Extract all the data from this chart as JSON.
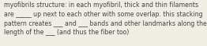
{
  "text": "myofibrils structure: in each myofibril, thick and thin filaments\nare _____ up next to each other with some overlap. this stacking\npattern creates ___ and ___ bands and other landmarks along the\nlength of the ___ (and thus the fiber too)",
  "background_color": "#f0ede4",
  "text_color": "#444444",
  "fontsize": 5.55,
  "figsize": [
    2.62,
    0.59
  ],
  "dpi": 100
}
